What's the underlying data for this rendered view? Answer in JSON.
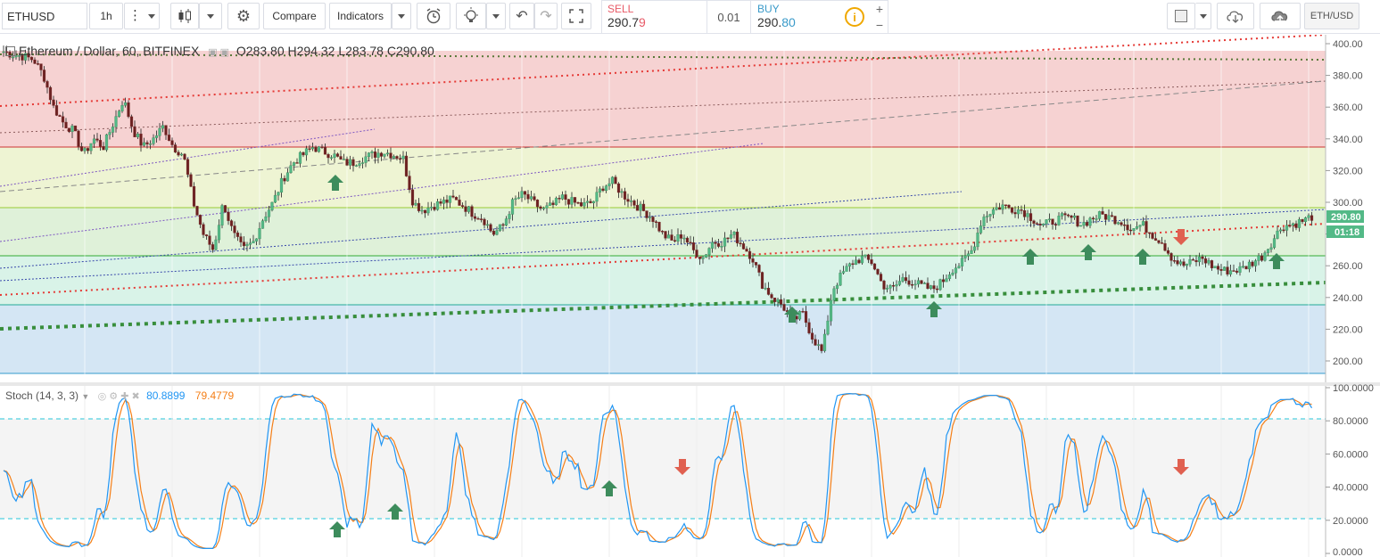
{
  "toolbar": {
    "symbol": "ETHUSD",
    "interval": "1h",
    "compare_label": "Compare",
    "indicators_label": "Indicators",
    "symbol_badge": "ETH/USD"
  },
  "trade": {
    "sell_label": "SELL",
    "sell_price_main": "290.7",
    "sell_price_last": "9",
    "spread": "0.01",
    "buy_label": "BUY",
    "buy_price_main": "290.",
    "buy_price_last": "80"
  },
  "main_legend": {
    "title": "Ethereum / Dollar, 60, BITFINEX",
    "ohlc": "O283.80 H294.32 L283.78 C290.80"
  },
  "price_axis": {
    "ticks": [
      "400.00",
      "380.00",
      "360.00",
      "340.00",
      "320.00",
      "300.00",
      "280.00",
      "260.00",
      "240.00",
      "220.00",
      "200.00"
    ],
    "last_price": "290.80",
    "countdown": "01:18"
  },
  "stoch": {
    "title": "Stoch (14, 3, 3)",
    "k_value": "80.8899",
    "d_value": "79.4779",
    "ticks": [
      "100.0000",
      "80.0000",
      "60.0000",
      "40.0000",
      "20.0000",
      "0.0000"
    ]
  },
  "colors": {
    "up_candle": "#53b987",
    "down_candle": "#eb4d5c",
    "k_line": "#2196f3",
    "d_line": "#f57f17",
    "arrow_up": "#3d8c5c",
    "arrow_down": "#e06050"
  },
  "chart_data": {
    "type": "candlestick",
    "price_ylim": [
      190,
      405
    ],
    "close_series": [
      395,
      393,
      392,
      390,
      380,
      360,
      350,
      345,
      330,
      340,
      335,
      350,
      365,
      345,
      335,
      340,
      348,
      335,
      330,
      300,
      280,
      270,
      300,
      280,
      270,
      275,
      290,
      300,
      315,
      325,
      330,
      335,
      332,
      330,
      325,
      325,
      328,
      330,
      332,
      330,
      328,
      300,
      295,
      298,
      300,
      302,
      298,
      293,
      290,
      280,
      285,
      300,
      305,
      300,
      295,
      298,
      303,
      300,
      298,
      300,
      310,
      313,
      305,
      300,
      295,
      290,
      280,
      275,
      280,
      270,
      265,
      275,
      275,
      280,
      273,
      265,
      248,
      240,
      235,
      225,
      230,
      215,
      205,
      245,
      255,
      262,
      265,
      262,
      248,
      245,
      252,
      250,
      247,
      245,
      250,
      258,
      262,
      270,
      290,
      295,
      298,
      296,
      295,
      290,
      285,
      288,
      290,
      290,
      286,
      290,
      292,
      290,
      288,
      283,
      286,
      280,
      275,
      265,
      260,
      262,
      265,
      260,
      257,
      257,
      258,
      262,
      266,
      275,
      285,
      286,
      288,
      291
    ]
  }
}
